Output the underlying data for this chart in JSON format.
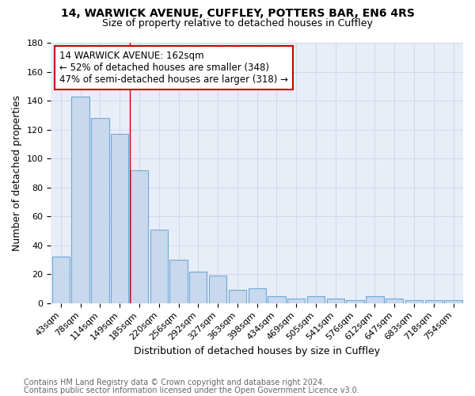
{
  "title": "14, WARWICK AVENUE, CUFFLEY, POTTERS BAR, EN6 4RS",
  "subtitle": "Size of property relative to detached houses in Cuffley",
  "xlabel": "Distribution of detached houses by size in Cuffley",
  "ylabel": "Number of detached properties",
  "categories": [
    "43sqm",
    "78sqm",
    "114sqm",
    "149sqm",
    "185sqm",
    "220sqm",
    "256sqm",
    "292sqm",
    "327sqm",
    "363sqm",
    "398sqm",
    "434sqm",
    "469sqm",
    "505sqm",
    "541sqm",
    "576sqm",
    "612sqm",
    "647sqm",
    "683sqm",
    "718sqm",
    "754sqm"
  ],
  "values": [
    32,
    143,
    128,
    117,
    92,
    51,
    30,
    22,
    19,
    9,
    10,
    5,
    3,
    5,
    3,
    2,
    5,
    3,
    2,
    2,
    2
  ],
  "bar_color": "#c8d9ee",
  "bar_edgecolor": "#6fa8d4",
  "vline_x": 3.5,
  "vline_color": "#cc0000",
  "annotation_text": "14 WARWICK AVENUE: 162sqm\n← 52% of detached houses are smaller (348)\n47% of semi-detached houses are larger (318) →",
  "annotation_box_edgecolor": "#cc0000",
  "annotation_box_facecolor": "#ffffff",
  "footnote1": "Contains HM Land Registry data © Crown copyright and database right 2024.",
  "footnote2": "Contains public sector information licensed under the Open Government Licence v3.0.",
  "title_fontsize": 10,
  "subtitle_fontsize": 9,
  "xlabel_fontsize": 9,
  "ylabel_fontsize": 9,
  "tick_fontsize": 8,
  "footnote_fontsize": 7,
  "ylim": [
    0,
    180
  ],
  "yticks": [
    0,
    20,
    40,
    60,
    80,
    100,
    120,
    140,
    160,
    180
  ],
  "background_color": "#ffffff",
  "grid_color": "#d0d8e8"
}
